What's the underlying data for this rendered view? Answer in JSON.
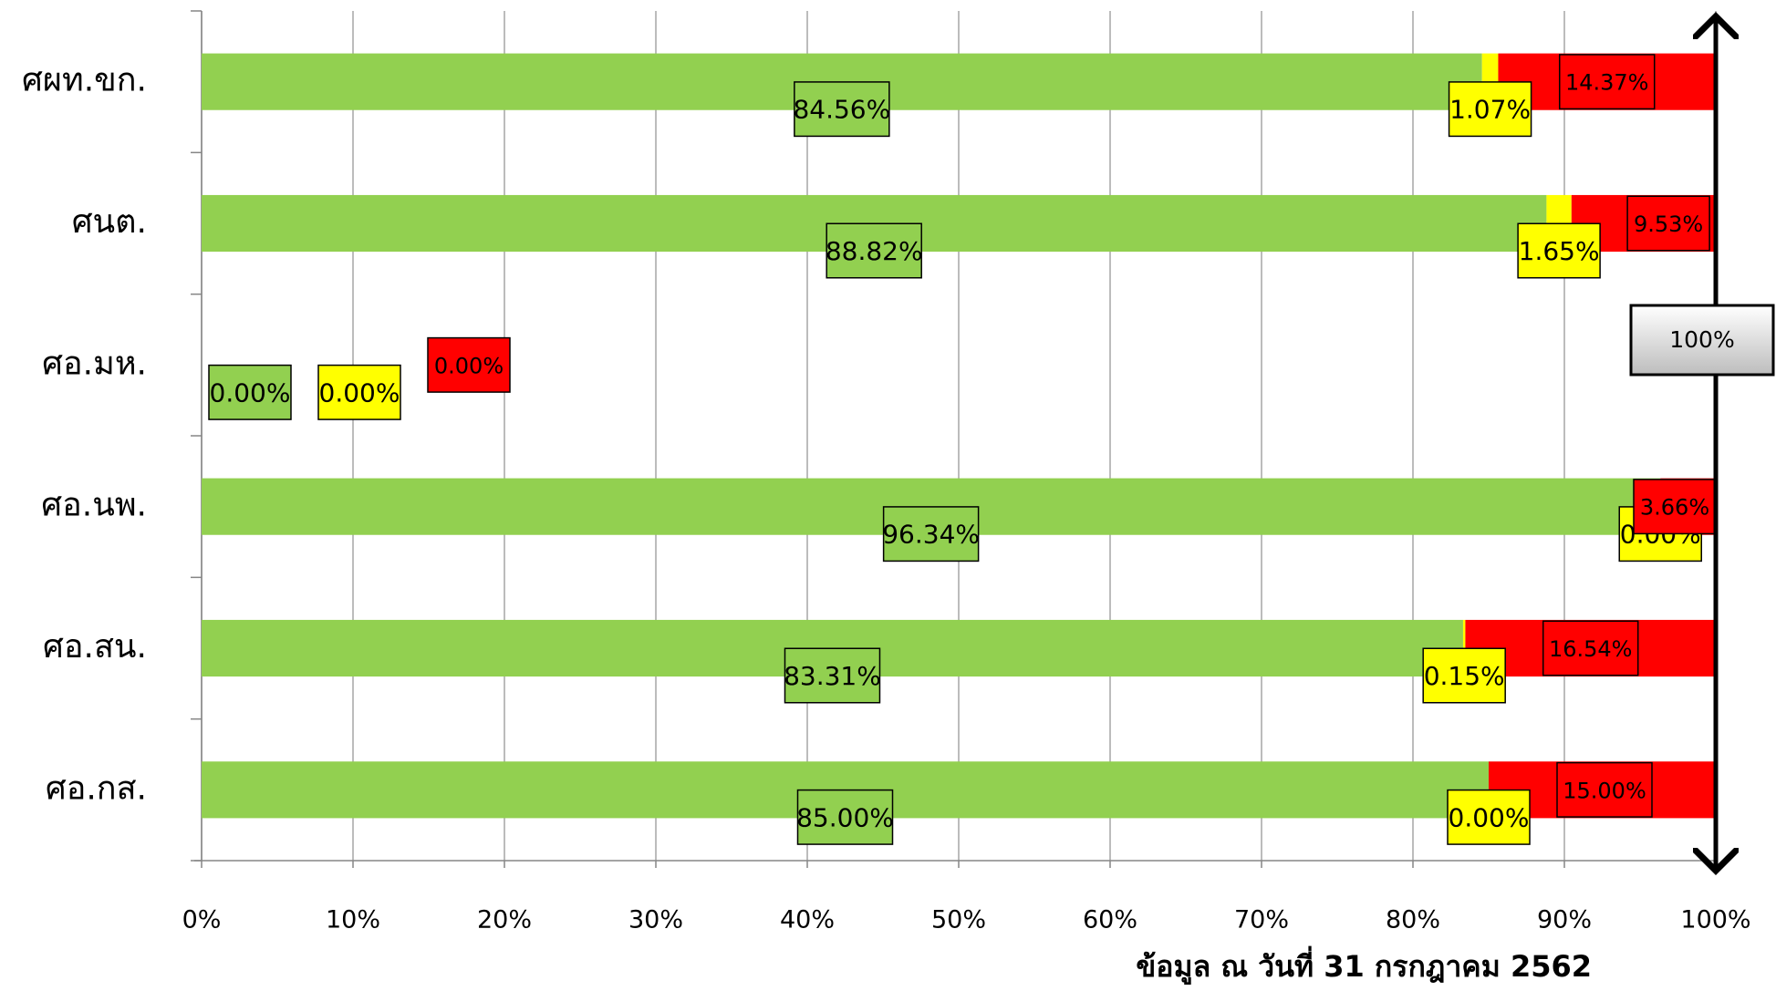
{
  "chart_data": {
    "type": "stacked-bar-horizontal",
    "categories": [
      "ศผท.ขก.",
      "ศนต.",
      "ศอ.มห.",
      "ศอ.นพ.",
      "ศอ.สน.",
      "ศอ.กส."
    ],
    "series": [
      {
        "color": "#92d050",
        "values": [
          84.56,
          88.82,
          0,
          96.34,
          83.31,
          85.0
        ],
        "value_labels": [
          "84.56%",
          "88.82%",
          "0.00%",
          "96.34%",
          "83.31%",
          "85.00%"
        ]
      },
      {
        "color": "#ffff00",
        "values": [
          1.07,
          1.65,
          0,
          0,
          0.15,
          0
        ],
        "value_labels": [
          "1.07%",
          "1.65%",
          "0.00%",
          "0.00%",
          "0.15%",
          "0.00%"
        ]
      },
      {
        "color": "#ff0000",
        "values": [
          14.37,
          9.53,
          0,
          3.66,
          16.54,
          15.0
        ],
        "value_labels": [
          "14.37%",
          "9.53%",
          "0.00%",
          "3.66%",
          "16.54%",
          "15.00%"
        ]
      }
    ],
    "xlim": [
      0,
      100
    ],
    "xticks": [
      {
        "value": 0,
        "label": "0%"
      },
      {
        "value": 10,
        "label": "10%"
      },
      {
        "value": 20,
        "label": "20%"
      },
      {
        "value": 30,
        "label": "30%"
      },
      {
        "value": 40,
        "label": "40%"
      },
      {
        "value": 50,
        "label": "50%"
      },
      {
        "value": 60,
        "label": "60%"
      },
      {
        "value": 70,
        "label": "70%"
      },
      {
        "value": 80,
        "label": "80%"
      },
      {
        "value": 90,
        "label": "90%"
      },
      {
        "value": 100,
        "label": "100%"
      }
    ],
    "grid": true,
    "annotations": [
      "100%",
      "ข้อมูล ณ วันที่ 31 กรกฎาคม 2562"
    ]
  }
}
